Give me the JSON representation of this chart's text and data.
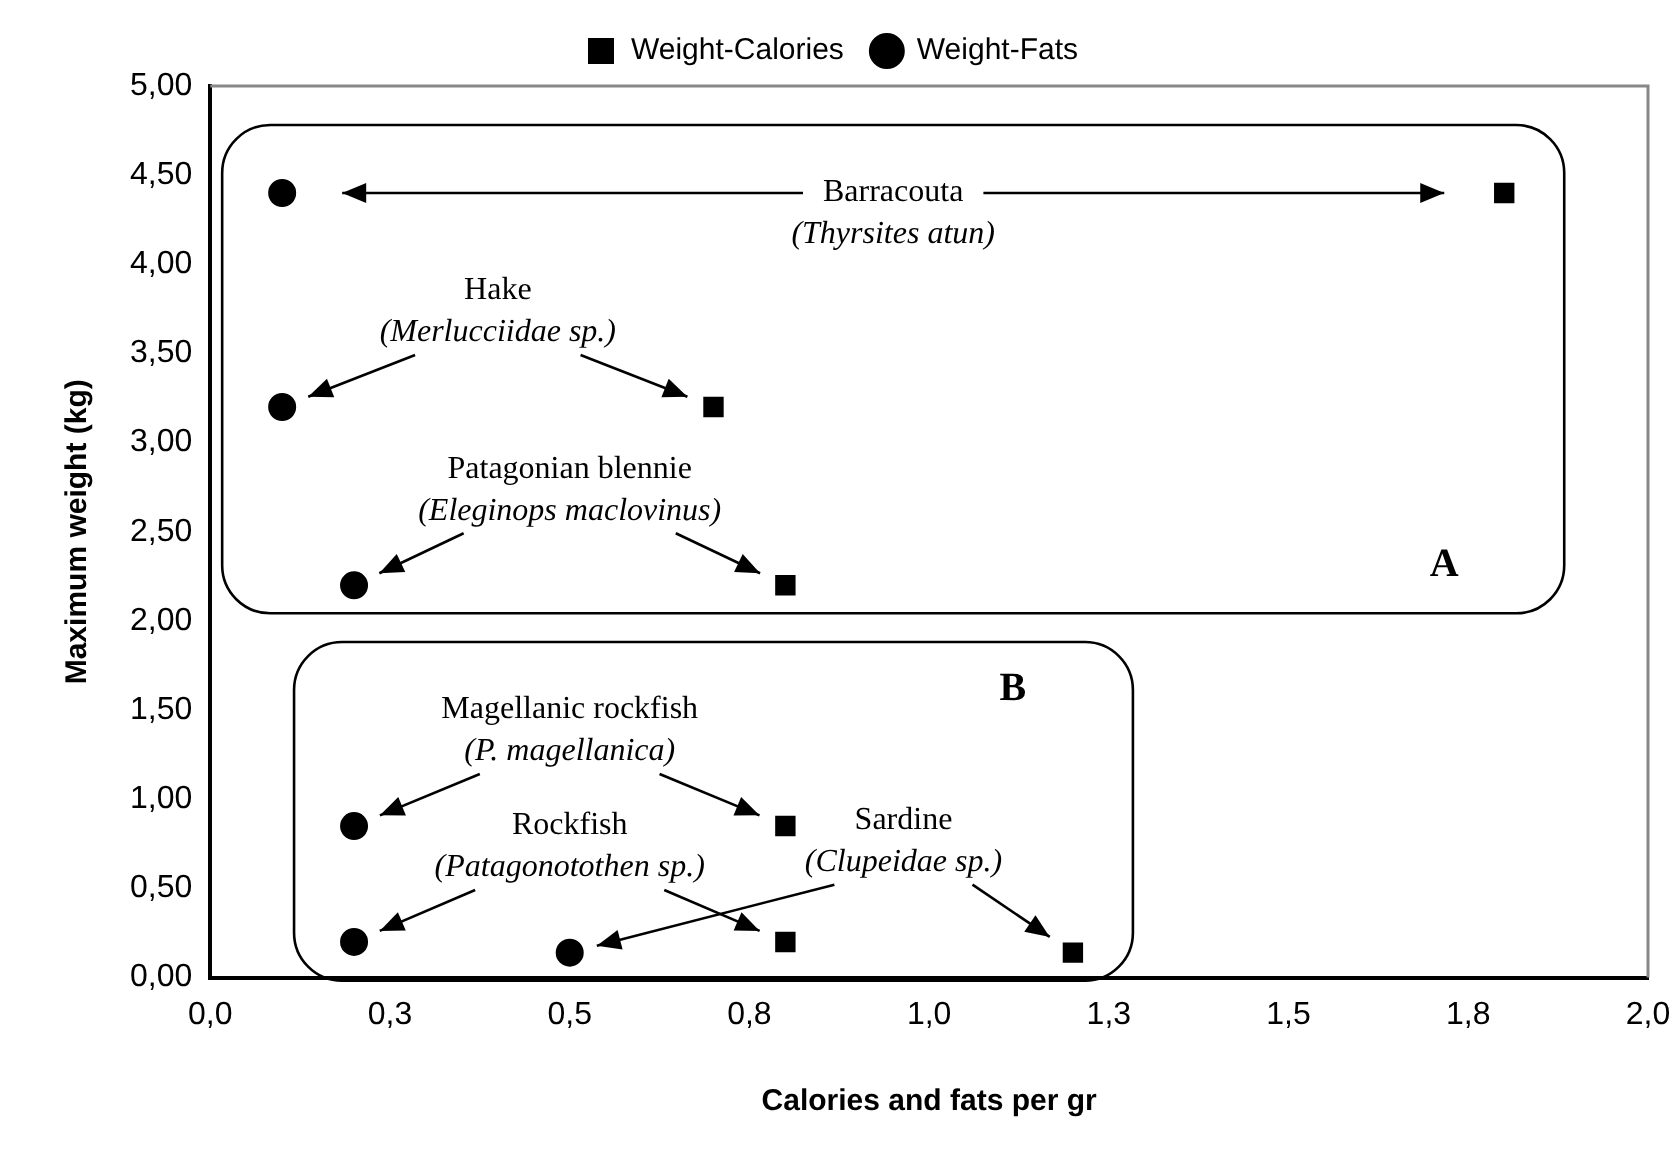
{
  "chart_data": {
    "type": "scatter",
    "xlabel": "Calories and fats per gr",
    "ylabel": "Maximum weight (kg)",
    "series": [
      {
        "name": "Weight-Calories",
        "color": "#000000",
        "marker": "square",
        "x": [
          1.8,
          0.7,
          0.8,
          0.8,
          0.8,
          1.2
        ],
        "values": [
          4.4,
          3.2,
          2.2,
          0.85,
          0.2,
          0.14
        ]
      },
      {
        "name": "Weight-Fats",
        "color": "#000000",
        "marker": "circle",
        "x": [
          0.1,
          0.1,
          0.2,
          0.2,
          0.2,
          0.5
        ],
        "values": [
          4.4,
          3.2,
          2.2,
          0.85,
          0.2,
          0.14
        ]
      }
    ],
    "xlim": [
      0,
      2
    ],
    "xticks": [
      {
        "value": 0,
        "label": "0,0"
      },
      {
        "value": 0.25,
        "label": "0,3"
      },
      {
        "value": 0.5,
        "label": "0,5"
      },
      {
        "value": 0.75,
        "label": "0,8"
      },
      {
        "value": 1,
        "label": "1,0"
      },
      {
        "value": 1.25,
        "label": "1,3"
      },
      {
        "value": 1.5,
        "label": "1,5"
      },
      {
        "value": 1.75,
        "label": "1,8"
      },
      {
        "value": 2,
        "label": "2,0"
      }
    ],
    "ylim": [
      0,
      5
    ],
    "yticks": [
      {
        "value": 0,
        "label": "0,00"
      },
      {
        "value": 0.5,
        "label": "0,50"
      },
      {
        "value": 1,
        "label": "1,00"
      },
      {
        "value": 1.5,
        "label": "1,50"
      },
      {
        "value": 2,
        "label": "2,00"
      },
      {
        "value": 2.5,
        "label": "2,50"
      },
      {
        "value": 3,
        "label": "3,00"
      },
      {
        "value": 3.5,
        "label": "3,50"
      },
      {
        "value": 4,
        "label": "4,00"
      },
      {
        "value": 4.5,
        "label": "4,50"
      },
      {
        "value": 5,
        "label": "5,00"
      }
    ],
    "annotations": [
      "Barracouta\n(Thyrsites atun)",
      "Hake\n(Merlucciidae sp.)",
      "Patagonian blennie\n(Eleginops maclovinus)",
      "Magellanic rockfish\n(P. magellanica)",
      "Rockfish\n(Patagonotothen sp.)",
      "Sardine\n(Clupeidae sp.)",
      "A",
      "B"
    ],
    "grid": false,
    "legend": "top"
  }
}
